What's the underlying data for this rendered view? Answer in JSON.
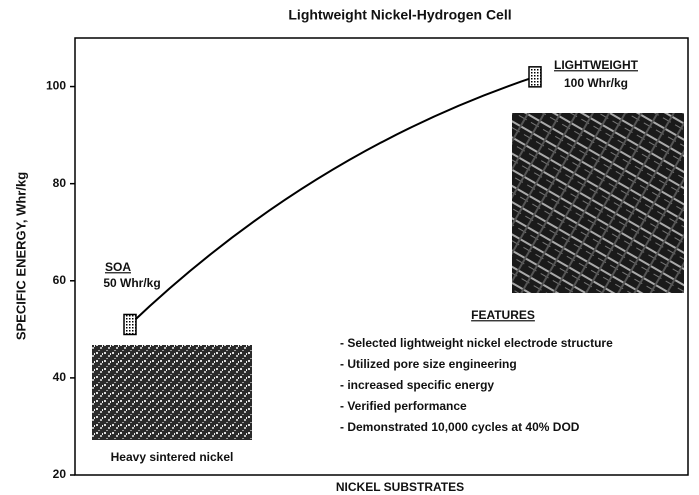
{
  "chart_data": {
    "type": "line",
    "title": "Lightweight Nickel-Hydrogen Cell",
    "y_label": "SPECIFIC ENERGY, Whr/kg",
    "x_label": "NICKEL SUBSTRATES",
    "categories": [
      "SOA",
      "LIGHTWEIGHT"
    ],
    "series": [
      {
        "name": "Specific energy",
        "color": "#000000",
        "values": [
          51,
          102
        ]
      }
    ],
    "ylim": [
      20,
      110
    ],
    "yticks": [
      20,
      40,
      60,
      80,
      100
    ],
    "annotations": [
      "50 Whr/kg",
      "100 Whr/kg",
      "Heavy sintered nickel"
    ],
    "features": {
      "title": "FEATURES",
      "items": [
        "- Selected lightweight nickel electrode structure",
        "- Utilized pore size engineering",
        "- increased specific energy",
        "- Verified performance",
        "- Demonstrated 10,000 cycles at 40% DOD"
      ]
    }
  }
}
